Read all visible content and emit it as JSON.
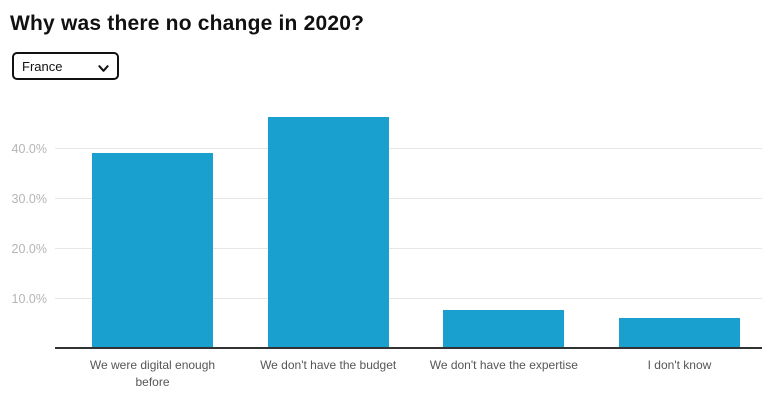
{
  "header": {
    "title": "Why was there no change in 2020?"
  },
  "controls": {
    "country_select": {
      "value": "France",
      "icon": "chevron-down"
    }
  },
  "chart_data": {
    "type": "bar",
    "title": "Why was there no change in 2020?",
    "categories": [
      "We were digital enough before",
      "We don't have the budget",
      "We don't have the expertise",
      "I don't know"
    ],
    "values": [
      39.2,
      46.4,
      7.8,
      6.2
    ],
    "unit": "%",
    "xlabel": "",
    "ylabel": "",
    "ylim": [
      0,
      50
    ],
    "yticks": [
      {
        "value": 10,
        "label": "10.0%"
      },
      {
        "value": 20,
        "label": "20.0%"
      },
      {
        "value": 30,
        "label": "30.0%"
      },
      {
        "value": 40,
        "label": "40.0%"
      }
    ],
    "grid": true,
    "legend": false,
    "colors": {
      "bar": "#1aa0ce",
      "gridline": "#e6e6e6",
      "axis": "#333333",
      "ytick_label": "#b5b5b5",
      "xtick_label": "#565656",
      "title": "#111111"
    }
  }
}
